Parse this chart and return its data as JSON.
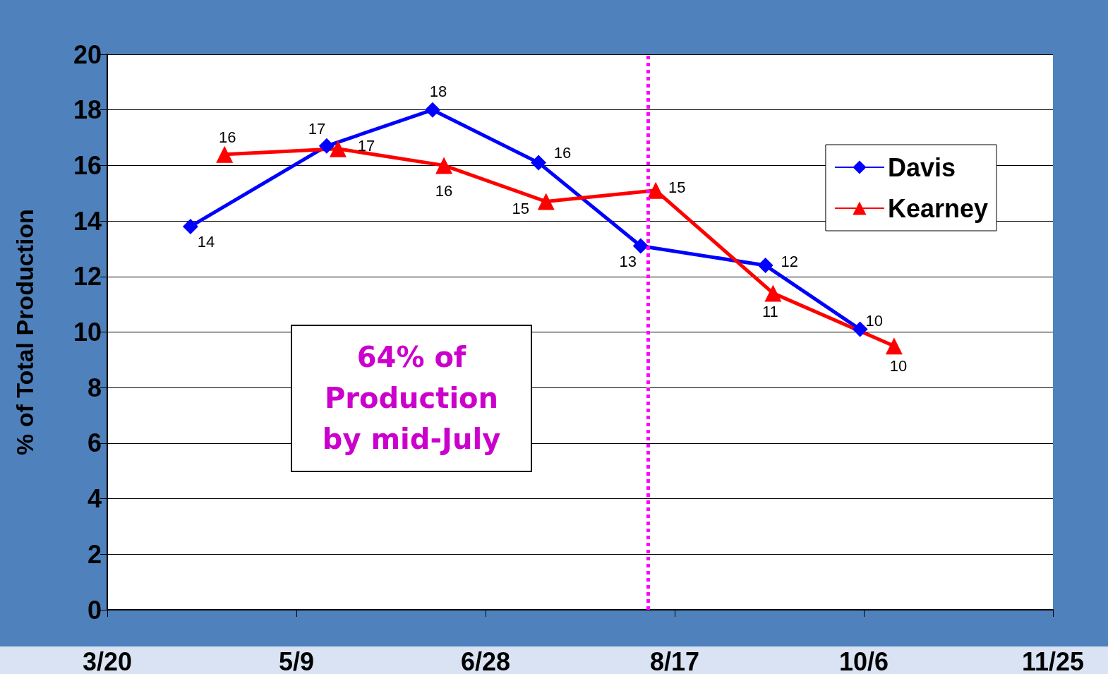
{
  "chart_data": {
    "type": "line",
    "ylabel": "% of Total Production",
    "xlim": [
      "--03-20",
      "--11-25"
    ],
    "xticks": [
      {
        "value": "--03-20",
        "label": "3/20"
      },
      {
        "value": "--05-09",
        "label": "5/9"
      },
      {
        "value": "--06-28",
        "label": "6/28"
      },
      {
        "value": "--08-17",
        "label": "8/17"
      },
      {
        "value": "--10-06",
        "label": "10/6"
      },
      {
        "value": "--11-25",
        "label": "11/25"
      }
    ],
    "ylim": [
      0,
      20
    ],
    "yticks": [
      0,
      2,
      4,
      6,
      8,
      10,
      12,
      14,
      16,
      18,
      20
    ],
    "grid": "y",
    "legend": "top right",
    "series": [
      {
        "name": "Davis",
        "color": "#0000ff",
        "marker": "diamond",
        "x": [
          "--04-11",
          "--05-17",
          "--06-14",
          "--07-12",
          "--08-08",
          "--09-10",
          "--10-05"
        ],
        "values": [
          13.8,
          16.7,
          18.0,
          16.1,
          13.1,
          12.4,
          10.1
        ],
        "value_labels": [
          "14",
          "17",
          "18",
          "16",
          "13",
          "12",
          "10"
        ]
      },
      {
        "name": "Kearney",
        "color": "#ff0000",
        "marker": "triangle",
        "x": [
          "--04-20",
          "--05-20",
          "--06-17",
          "--07-14",
          "--08-12",
          "--09-12",
          "--10-14"
        ],
        "values": [
          16.4,
          16.6,
          16.0,
          14.7,
          15.1,
          11.4,
          9.5
        ],
        "value_labels": [
          "16",
          "17",
          "16",
          "15",
          "15",
          "11",
          "10"
        ]
      }
    ],
    "ref_lines": [
      {
        "axis": "x",
        "value": "--08-10",
        "color": "#ff00ff",
        "line_style": "dotted"
      }
    ],
    "annotations": [
      "64% of Production by mid-July"
    ]
  }
}
